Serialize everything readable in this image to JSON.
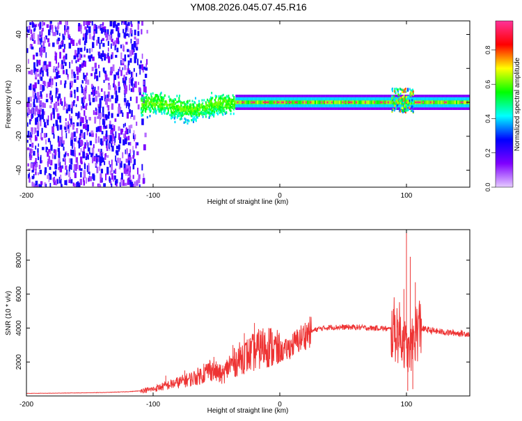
{
  "figure": {
    "title": "YM08.2026.045.07.45.R16"
  },
  "chart_data": [
    {
      "type": "heatmap",
      "name": "spectrogram",
      "title": "",
      "xlabel": "Height of straight line (km)",
      "ylabel": "Frequency (Hz)",
      "xlim": [
        -200,
        150
      ],
      "ylim": [
        -50,
        48
      ],
      "xticks": [
        -200,
        -100,
        0,
        100
      ],
      "yticks": [
        -40,
        -20,
        0,
        20,
        40
      ],
      "colorbar": {
        "label": "Normalized spectral amplitude",
        "range": [
          0,
          0.97
        ],
        "ticks": [
          0,
          0.2,
          0.4,
          0.6,
          0.8
        ],
        "tick_labels": [
          "0.0",
          "0.2",
          "0.4",
          "0.6",
          "0.8"
        ],
        "stops": [
          "#e6ccff",
          "#7f00ff",
          "#0000ff",
          "#00ffff",
          "#00ff00",
          "#ffff00",
          "#ff0000",
          "#ff3399"
        ]
      },
      "regions": [
        {
          "label": "scattered noise",
          "x": [
            -200,
            -105
          ],
          "freq": [
            -50,
            48
          ],
          "amplitude": [
            0.05,
            0.25
          ]
        },
        {
          "label": "broadband onset",
          "x": [
            -110,
            -35
          ],
          "freq": [
            -12,
            6
          ],
          "amplitude": [
            0.2,
            0.55
          ]
        },
        {
          "label": "narrow carrier",
          "x": [
            -35,
            150
          ],
          "freq": [
            -2,
            2
          ],
          "amplitude": [
            0.4,
            0.97
          ]
        },
        {
          "label": "disturbance",
          "x": [
            88,
            105
          ],
          "freq": [
            -6,
            8
          ],
          "amplitude": [
            0.3,
            0.8
          ]
        }
      ]
    },
    {
      "type": "line",
      "name": "snr",
      "title": "",
      "xlabel": "Height of straight line (km)",
      "ylabel": "SNR (10 * v/v)",
      "xlim": [
        -200,
        150
      ],
      "ylim": [
        0,
        9800
      ],
      "xticks": [
        -200,
        -100,
        0,
        100
      ],
      "yticks": [
        2000,
        4000,
        6000,
        8000
      ],
      "color": "#ee3333",
      "series": [
        {
          "name": "SNR",
          "x": [
            -200,
            -180,
            -160,
            -140,
            -120,
            -110,
            -100,
            -90,
            -80,
            -70,
            -60,
            -55,
            -50,
            -45,
            -40,
            -35,
            -30,
            -25,
            -20,
            -15,
            -10,
            -5,
            0,
            5,
            10,
            15,
            20,
            25,
            30,
            40,
            50,
            60,
            70,
            80,
            85,
            90,
            95,
            98,
            100,
            102,
            104,
            106,
            108,
            110,
            120,
            130,
            140,
            150
          ],
          "y": [
            150,
            160,
            180,
            200,
            250,
            300,
            400,
            600,
            800,
            1000,
            1300,
            1600,
            1400,
            1200,
            1800,
            2000,
            2300,
            2400,
            2600,
            2800,
            3000,
            2800,
            2600,
            2700,
            3000,
            3300,
            3600,
            3800,
            3950,
            4050,
            4050,
            4050,
            4000,
            4000,
            3950,
            3900,
            3700,
            3200,
            2800,
            2500,
            2900,
            3500,
            3900,
            4000,
            3850,
            3750,
            3700,
            3650
          ]
        }
      ],
      "peaks": {
        "x": [
          -90,
          -75,
          -60,
          -52,
          -45,
          -37,
          -28,
          -20,
          -15,
          -8,
          5,
          98,
          100,
          101,
          103,
          105,
          107
        ],
        "y": [
          1200,
          1500,
          1900,
          2300,
          1800,
          3000,
          3700,
          4300,
          3600,
          3300,
          3300,
          6300,
          9800,
          300,
          8200,
          400,
          6700
        ]
      }
    }
  ]
}
